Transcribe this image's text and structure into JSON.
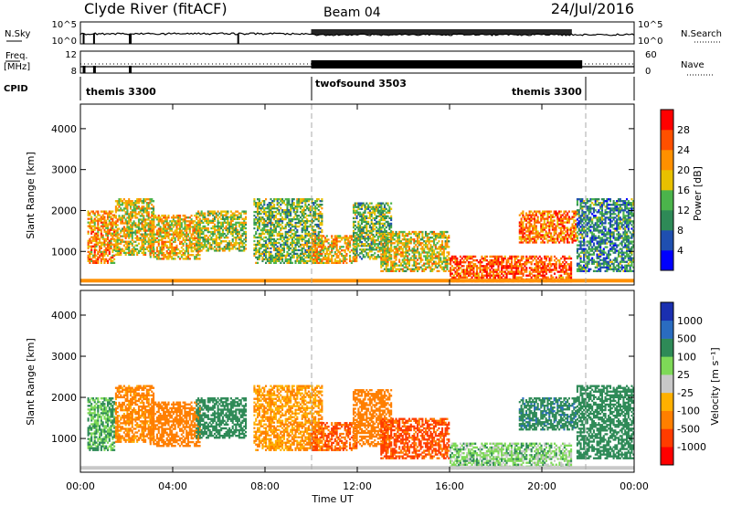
{
  "header": {
    "station": "Clyde River (fitACF)",
    "beam": "Beam 04",
    "date": "24/Jul/2016"
  },
  "noise_panel": {
    "left_label": "N.Sky",
    "left_ticks": [
      "10^5",
      "10^0"
    ],
    "right_label": "N.Search",
    "right_ticks": [
      "10^5",
      "10^0"
    ]
  },
  "freq_panel": {
    "left_label_1": "Freq.",
    "left_label_2": "[MHz]",
    "left_ticks": [
      "12",
      "8"
    ],
    "right_label": "Nave",
    "right_ticks": [
      "60",
      "0"
    ]
  },
  "cpid_panel": {
    "label": "CPID",
    "segments": [
      {
        "name": "themis 3300",
        "start": 0,
        "end": 10
      },
      {
        "name": "twofsound 3503",
        "start": 10,
        "end": 21.75
      },
      {
        "name": "themis 3300",
        "start": 21.75,
        "end": 24
      }
    ]
  },
  "power_panel": {
    "ylabel": "Slant Range [km]",
    "yticks": [
      "4000",
      "3000",
      "2000",
      "1000"
    ],
    "colorbar_label": "Power [dB]",
    "colorbar_ticks": [
      "28",
      "24",
      "20",
      "16",
      "12",
      "8",
      "4"
    ],
    "colors": [
      "#0000ff",
      "#1f4fb0",
      "#2e8a57",
      "#4bb44b",
      "#e8c000",
      "#ff9000",
      "#ff5000",
      "#ff0000"
    ]
  },
  "velocity_panel": {
    "ylabel": "Slant Range [km]",
    "yticks": [
      "4000",
      "3000",
      "2000",
      "1000"
    ],
    "colorbar_label": "Velocity [m s⁻¹]",
    "colorbar_ticks": [
      "1000",
      "500",
      "100",
      "25",
      "-25",
      "-100",
      "-500",
      "-1000"
    ],
    "colors": [
      "#1a2fb0",
      "#2a6cc0",
      "#2e8a57",
      "#7ed957",
      "#c8c8c8",
      "#ffb000",
      "#ff7f00",
      "#ff3c00",
      "#ff0000"
    ]
  },
  "x_axis": {
    "ticks": [
      "00:00",
      "04:00",
      "08:00",
      "12:00",
      "16:00",
      "20:00",
      "00:00"
    ],
    "label": "Time UT"
  },
  "chart_data": {
    "type": "heatmap",
    "x_unit": "hours UT",
    "xlim": [
      0,
      24
    ],
    "ylim": [
      180,
      4600
    ],
    "power_clim": [
      0,
      32
    ],
    "velocity_clim": [
      -1200,
      1200
    ],
    "scatter_regions": [
      {
        "t0": 0.3,
        "t1": 1.5,
        "r0": 700,
        "r1": 2000,
        "power": 22,
        "velocity": 100
      },
      {
        "t0": 1.5,
        "t1": 3.2,
        "r0": 900,
        "r1": 2300,
        "power": 18,
        "velocity": -150
      },
      {
        "t0": 3.0,
        "t1": 5.2,
        "r0": 800,
        "r1": 1900,
        "power": 20,
        "velocity": -300
      },
      {
        "t0": 5.0,
        "t1": 7.2,
        "r0": 1000,
        "r1": 2000,
        "power": 16,
        "velocity": 300
      },
      {
        "t0": 7.5,
        "t1": 10.5,
        "r0": 700,
        "r1": 2300,
        "power": 14,
        "velocity": -100
      },
      {
        "t0": 10.0,
        "t1": 12.0,
        "r0": 700,
        "r1": 1400,
        "power": 20,
        "velocity": -500
      },
      {
        "t0": 11.8,
        "t1": 13.5,
        "r0": 800,
        "r1": 2200,
        "power": 14,
        "velocity": -200
      },
      {
        "t0": 13.0,
        "t1": 16.0,
        "r0": 500,
        "r1": 1500,
        "power": 18,
        "velocity": -600
      },
      {
        "t0": 16.0,
        "t1": 21.3,
        "r0": 250,
        "r1": 900,
        "power": 26,
        "velocity": 60
      },
      {
        "t0": 19.0,
        "t1": 21.5,
        "r0": 1200,
        "r1": 2000,
        "power": 24,
        "velocity": 400
      },
      {
        "t0": 21.5,
        "t1": 24.0,
        "r0": 500,
        "r1": 2300,
        "power": 10,
        "velocity": 300
      }
    ]
  }
}
